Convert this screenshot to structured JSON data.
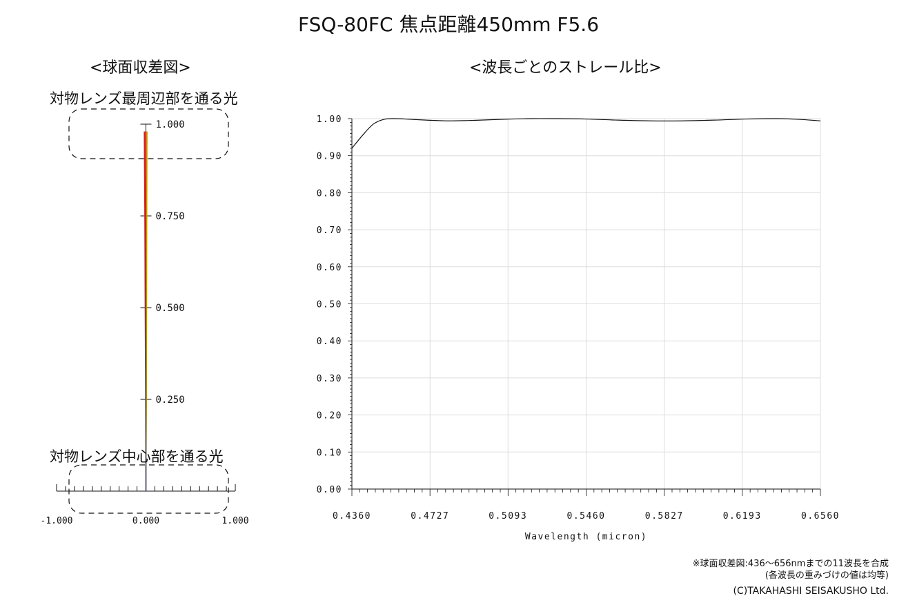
{
  "title": "FSQ-80FC 焦点距離450mm F5.6",
  "left_panel": {
    "subtitle": "<球面収差図>",
    "annotation_top": "対物レンズ最周辺部を通る光",
    "annotation_bottom": "対物レンズ中心部を通る光"
  },
  "right_panel": {
    "subtitle": "<波長ごとのストレール比>"
  },
  "notes": {
    "line1": "※球面収差図:436〜656nmまでの11波長を合成",
    "line2": "(各波長の重みづけの値は均等)",
    "copyright": "(C)TAKAHASHI SEISAKUSHO Ltd."
  },
  "chart_data": [
    {
      "type": "line",
      "id": "spherical-aberration",
      "xlim": [
        -1.0,
        1.0
      ],
      "ylim": [
        0.0,
        1.0
      ],
      "x_tick_labels": [
        "-1.000",
        "0.000",
        "1.000"
      ],
      "y_tick_labels": [
        "0.250",
        "0.500",
        "0.750",
        "1.000"
      ],
      "y_ticks": [
        0.25,
        0.5,
        0.75,
        1.0
      ],
      "series": [
        {
          "color": "#d62020",
          "points": [
            [
              0.0,
              0.0
            ],
            [
              -0.003,
              0.25
            ],
            [
              -0.008,
              0.5
            ],
            [
              -0.012,
              0.75
            ],
            [
              -0.018,
              0.98
            ]
          ]
        },
        {
          "color": "#f08020",
          "points": [
            [
              0.0,
              0.0
            ],
            [
              0.003,
              0.25
            ],
            [
              0.004,
              0.5
            ],
            [
              0.006,
              0.75
            ],
            [
              0.008,
              0.98
            ]
          ]
        },
        {
          "color": "#c8a000",
          "points": [
            [
              0.0,
              0.0
            ],
            [
              0.005,
              0.25
            ],
            [
              0.007,
              0.5
            ],
            [
              0.009,
              0.75
            ],
            [
              0.012,
              0.98
            ]
          ]
        },
        {
          "color": "#3050c0",
          "points": [
            [
              0.0,
              0.0
            ],
            [
              -0.001,
              0.25
            ],
            [
              -0.002,
              0.5
            ],
            [
              -0.003,
              0.75
            ],
            [
              -0.004,
              0.98
            ]
          ]
        }
      ]
    },
    {
      "type": "line",
      "id": "strehl-ratio",
      "xlabel": "Wavelength (micron)",
      "ylabel": "",
      "xlim": [
        0.436,
        0.656
      ],
      "ylim": [
        0.0,
        1.0
      ],
      "grid": true,
      "x_tick_labels": [
        "0.4360",
        "0.4727",
        "0.5093",
        "0.5460",
        "0.5827",
        "0.6193",
        "0.6560"
      ],
      "x_ticks": [
        0.436,
        0.4727,
        0.5093,
        0.546,
        0.5827,
        0.6193,
        0.656
      ],
      "y_tick_labels": [
        "0.00",
        "0.10",
        "0.20",
        "0.30",
        "0.40",
        "0.50",
        "0.60",
        "0.70",
        "0.80",
        "0.90",
        "1.00"
      ],
      "y_ticks": [
        0.0,
        0.1,
        0.2,
        0.3,
        0.4,
        0.5,
        0.6,
        0.7,
        0.8,
        0.9,
        1.0
      ],
      "series": [
        {
          "x": [
            0.436,
            0.441,
            0.446,
            0.451,
            0.456,
            0.461,
            0.471,
            0.481,
            0.491,
            0.501,
            0.511,
            0.521,
            0.531,
            0.546,
            0.561,
            0.576,
            0.591,
            0.606,
            0.621,
            0.636,
            0.646,
            0.656
          ],
          "y": [
            0.92,
            0.955,
            0.985,
            0.998,
            1.0,
            0.999,
            0.996,
            0.994,
            0.995,
            0.997,
            0.999,
            1.0,
            1.0,
            0.999,
            0.996,
            0.994,
            0.994,
            0.996,
            0.999,
            1.0,
            0.998,
            0.994
          ]
        }
      ]
    }
  ]
}
